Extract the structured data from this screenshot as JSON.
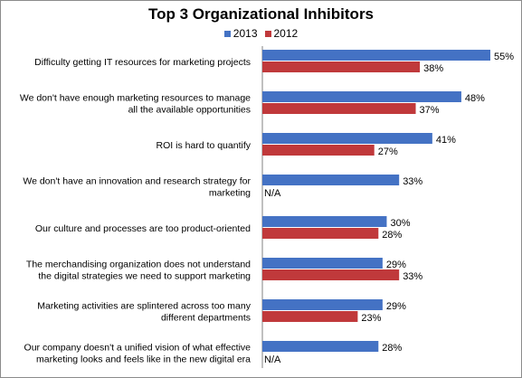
{
  "chart_data": {
    "type": "bar",
    "orientation": "horizontal",
    "title": "Top 3 Organizational Inhibitors",
    "legend_position": "top",
    "xlim": [
      0,
      55
    ],
    "grid": false,
    "categories": [
      [
        "Difficulty getting IT resources for marketing projects"
      ],
      [
        "We don't have enough marketing resources to manage",
        "all the available opportunities"
      ],
      [
        "ROI is hard to quantify"
      ],
      [
        "We don't have an innovation and research strategy for",
        "marketing"
      ],
      [
        "Our culture and processes are too product-oriented"
      ],
      [
        "The merchandising organization does not understand",
        "the digital strategies we need to support marketing"
      ],
      [
        "Marketing activities are splintered across too many",
        "different departments"
      ],
      [
        "Our company doesn't a unified vision of what effective",
        "marketing looks and feels like in the new digital era"
      ]
    ],
    "series": [
      {
        "name": "2013",
        "color": "#4472c4",
        "values": [
          55,
          48,
          41,
          33,
          30,
          29,
          29,
          28
        ],
        "labels": [
          "55%",
          "48%",
          "41%",
          "33%",
          "30%",
          "29%",
          "29%",
          "28%"
        ]
      },
      {
        "name": "2012",
        "color": "#c0393b",
        "values": [
          38,
          37,
          27,
          null,
          28,
          33,
          23,
          null
        ],
        "labels": [
          "38%",
          "37%",
          "27%",
          "N/A",
          "28%",
          "33%",
          "23%",
          "N/A"
        ]
      }
    ]
  }
}
